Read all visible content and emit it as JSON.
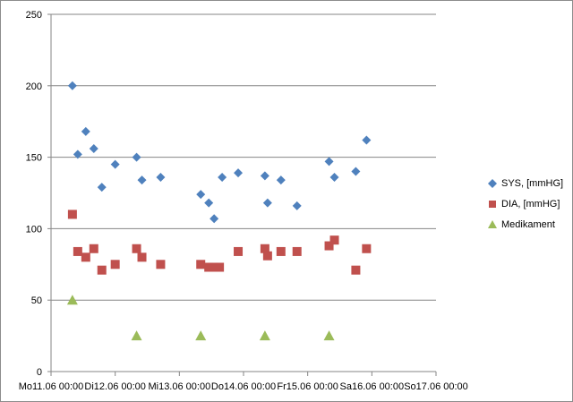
{
  "chart_data": {
    "type": "scatter",
    "title": "",
    "xlabel": "",
    "ylabel": "",
    "ylim": [
      0,
      250
    ],
    "yticks": [
      "0",
      "50",
      "100",
      "150",
      "200",
      "250"
    ],
    "xlim_days": [
      11,
      17
    ],
    "xtick_labels": [
      "Mo11.06 00:00",
      "Di12.06 00:00",
      "Mi13.06 00:00",
      "Do14.06 00:00",
      "Fr15.06 00:00",
      "Sa16.06 00:00",
      "So17.06 00:00"
    ],
    "grid": "horizontal",
    "legend_position": "right",
    "series": [
      {
        "name": "SYS, [mmHG]",
        "color": "#4f81bd",
        "marker": "diamond",
        "points": [
          [
            "11.06 08:00",
            200
          ],
          [
            "11.06 10:00",
            152
          ],
          [
            "11.06 13:00",
            168
          ],
          [
            "11.06 16:00",
            156
          ],
          [
            "11.06 19:00",
            129
          ],
          [
            "12.06 00:00",
            145
          ],
          [
            "12.06 08:00",
            150
          ],
          [
            "12.06 10:00",
            134
          ],
          [
            "12.06 17:00",
            136
          ],
          [
            "13.06 08:00",
            124
          ],
          [
            "13.06 11:00",
            118
          ],
          [
            "13.06 13:00",
            107
          ],
          [
            "13.06 16:00",
            136
          ],
          [
            "13.06 22:00",
            139
          ],
          [
            "14.06 08:00",
            137
          ],
          [
            "14.06 09:00",
            118
          ],
          [
            "14.06 14:00",
            134
          ],
          [
            "14.06 20:00",
            116
          ],
          [
            "15.06 08:00",
            147
          ],
          [
            "15.06 10:00",
            136
          ],
          [
            "15.06 18:00",
            140
          ],
          [
            "15.06 22:00",
            162
          ]
        ]
      },
      {
        "name": "DIA, [mmHG]",
        "color": "#c0504d",
        "marker": "square",
        "points": [
          [
            "11.06 08:00",
            110
          ],
          [
            "11.06 10:00",
            84
          ],
          [
            "11.06 13:00",
            80
          ],
          [
            "11.06 16:00",
            86
          ],
          [
            "11.06 19:00",
            71
          ],
          [
            "12.06 00:00",
            75
          ],
          [
            "12.06 08:00",
            86
          ],
          [
            "12.06 10:00",
            80
          ],
          [
            "12.06 17:00",
            75
          ],
          [
            "13.06 08:00",
            75
          ],
          [
            "13.06 11:00",
            73
          ],
          [
            "13.06 13:00",
            73
          ],
          [
            "13.06 15:00",
            73
          ],
          [
            "13.06 22:00",
            84
          ],
          [
            "14.06 08:00",
            86
          ],
          [
            "14.06 09:00",
            81
          ],
          [
            "14.06 14:00",
            84
          ],
          [
            "14.06 20:00",
            84
          ],
          [
            "15.06 08:00",
            88
          ],
          [
            "15.06 10:00",
            92
          ],
          [
            "15.06 18:00",
            71
          ],
          [
            "15.06 22:00",
            86
          ]
        ]
      },
      {
        "name": "Medikament",
        "color": "#9bbb59",
        "marker": "triangle",
        "points": [
          [
            "11.06 08:00",
            50
          ],
          [
            "12.06 08:00",
            25
          ],
          [
            "13.06 08:00",
            25
          ],
          [
            "14.06 08:00",
            25
          ],
          [
            "15.06 08:00",
            25
          ]
        ]
      }
    ]
  }
}
